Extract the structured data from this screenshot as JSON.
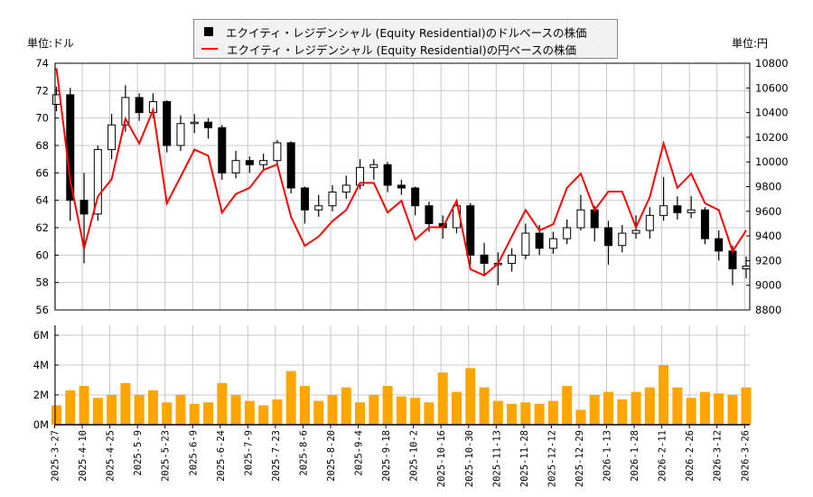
{
  "chart_data": {
    "type": "candlestick",
    "legend": {
      "placement": "top-center",
      "entries": [
        {
          "label": "エクイティ・レジデンシャル (Equity Residential)のドルベースの株価",
          "color": "#000000",
          "marker": "square"
        },
        {
          "label": "エクイティ・レジデンシャル (Equity Residential)の円ベースの株価",
          "color": "#ff0000",
          "marker": "line"
        }
      ]
    },
    "left_unit": "単位:ドル",
    "right_unit": "単位:円",
    "price_axis": {
      "ylim": [
        56,
        74
      ],
      "ticks": [
        "56",
        "58",
        "60",
        "62",
        "64",
        "66",
        "68",
        "70",
        "72",
        "74"
      ]
    },
    "yen_axis": {
      "ylim": [
        8800,
        10800
      ],
      "ticks": [
        "8800",
        "9000",
        "9200",
        "9400",
        "9600",
        "9800",
        "10000",
        "10200",
        "10400",
        "10600",
        "10800"
      ]
    },
    "volume_axis": {
      "ylim": [
        0,
        6
      ],
      "ticks": [
        "0M",
        "2M",
        "4M",
        "6M"
      ]
    },
    "x_ticks": [
      "2025-3-27",
      "2025-4-10",
      "2025-4-25",
      "2025-5-9",
      "2025-5-23",
      "2025-6-9",
      "2025-6-24",
      "2025-7-9",
      "2025-7-23",
      "2025-8-6",
      "2025-8-20",
      "2025-9-4",
      "2025-9-18",
      "2025-10-2",
      "2025-10-16",
      "2025-10-30",
      "2025-11-13",
      "2025-11-28",
      "2025-12-12",
      "2025-12-29",
      "2026-1-13",
      "2026-1-28",
      "2026-2-11",
      "2026-2-26",
      "2026-3-12",
      "2026-3-26"
    ],
    "grid": true,
    "colors": {
      "up_body": "#ffffff",
      "down_body": "#000000",
      "yen_line": "#ff0000",
      "volume": "#ffa500",
      "grid": "#c8c8c8"
    },
    "ohlc": {
      "open": [
        71.0,
        71.7,
        64.0,
        63.0,
        67.7,
        69.5,
        71.5,
        70.4,
        71.2,
        68.0,
        69.6,
        69.7,
        69.3,
        66.0,
        66.9,
        66.6,
        66.9,
        68.2,
        64.9,
        63.3,
        63.6,
        64.6,
        65.1,
        66.4,
        66.6,
        65.1,
        64.9,
        63.6,
        62.3,
        62.0,
        63.6,
        60.0,
        59.4,
        59.4,
        60.0,
        61.6,
        60.5,
        61.2,
        62.0,
        63.3,
        62.0,
        60.7,
        61.6,
        61.8,
        62.9,
        63.6,
        63.1,
        63.3,
        61.2,
        60.3,
        59.0
      ],
      "high": [
        72.3,
        72.2,
        66.0,
        68.0,
        70.3,
        72.4,
        71.8,
        71.8,
        71.3,
        70.2,
        70.3,
        70.0,
        69.5,
        67.6,
        67.2,
        67.4,
        68.4,
        68.3,
        65.0,
        64.4,
        65.1,
        65.8,
        67.0,
        67.0,
        66.8,
        65.5,
        65.0,
        63.9,
        62.9,
        64.0,
        63.8,
        60.9,
        60.2,
        60.5,
        62.3,
        62.2,
        61.7,
        62.6,
        64.4,
        63.6,
        62.5,
        62.2,
        62.9,
        63.5,
        65.7,
        64.3,
        64.3,
        63.5,
        61.8,
        60.7,
        59.9
      ],
      "low": [
        70.5,
        62.5,
        59.4,
        62.5,
        67.0,
        69.0,
        69.8,
        70.0,
        67.5,
        67.6,
        68.9,
        68.5,
        65.5,
        65.6,
        66.0,
        66.2,
        66.6,
        64.5,
        62.3,
        62.8,
        63.2,
        64.1,
        64.8,
        65.5,
        64.6,
        64.4,
        62.9,
        61.7,
        61.2,
        61.6,
        59.3,
        58.6,
        57.8,
        58.8,
        59.7,
        60.0,
        60.1,
        60.8,
        61.8,
        61.0,
        59.3,
        60.2,
        61.2,
        61.2,
        62.5,
        62.6,
        62.7,
        60.8,
        59.6,
        57.8,
        58.3
      ],
      "close": [
        71.7,
        64.0,
        63.0,
        67.7,
        69.5,
        71.5,
        70.4,
        71.2,
        68.0,
        69.6,
        69.7,
        69.3,
        66.0,
        66.9,
        66.6,
        66.9,
        68.2,
        64.9,
        63.3,
        63.6,
        64.6,
        65.1,
        66.4,
        66.6,
        65.1,
        64.9,
        63.6,
        62.3,
        62.0,
        63.6,
        60.0,
        59.4,
        59.4,
        60.0,
        61.6,
        60.5,
        61.2,
        62.0,
        63.3,
        62.0,
        60.7,
        61.6,
        61.8,
        62.9,
        63.6,
        63.1,
        63.3,
        61.2,
        60.3,
        59.0,
        59.2
      ]
    },
    "yen_close": [
      10760,
      9850,
      9300,
      9720,
      9860,
      10350,
      10150,
      10420,
      9665,
      9880,
      10100,
      10050,
      9590,
      9740,
      9790,
      9935,
      9980,
      9555,
      9320,
      9395,
      9520,
      9610,
      9830,
      9830,
      9590,
      9685,
      9370,
      9470,
      9470,
      9685,
      9130,
      9080,
      9175,
      9395,
      9610,
      9445,
      9495,
      9790,
      9905,
      9610,
      9760,
      9760,
      9470,
      9715,
      10150,
      9790,
      9905,
      9665,
      9610,
      9275,
      9445
    ],
    "volume_m": [
      1.3,
      2.3,
      2.6,
      1.8,
      2.0,
      2.8,
      2.0,
      2.3,
      1.5,
      2.0,
      1.4,
      1.5,
      2.8,
      2.0,
      1.6,
      1.3,
      1.7,
      3.6,
      2.6,
      1.6,
      2.0,
      2.5,
      1.5,
      2.0,
      2.6,
      1.9,
      1.8,
      1.5,
      3.5,
      2.2,
      3.8,
      2.5,
      1.6,
      1.4,
      1.5,
      1.4,
      1.6,
      2.6,
      1.0,
      2.0,
      2.2,
      1.7,
      2.2,
      2.5,
      4.0,
      2.5,
      1.8,
      2.2,
      2.1,
      2.0,
      2.5
    ]
  }
}
